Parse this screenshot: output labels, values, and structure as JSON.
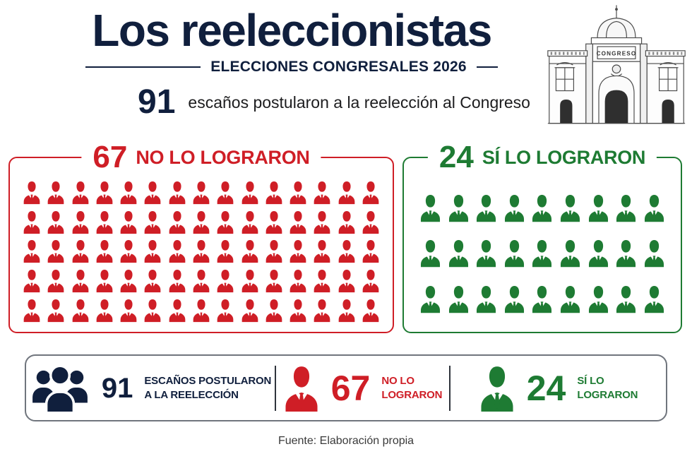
{
  "title": "Los reeleccionistas",
  "subtitle": "ELECCIONES CONGRESALES 2026",
  "lead": {
    "number": "91",
    "text": "escaños postularon a la reelección al Congreso"
  },
  "building": {
    "sign": "CONGRESO",
    "icon": "congress-building-illustration"
  },
  "colors": {
    "navy": "#101f3d",
    "red": "#cf1e26",
    "green": "#1e7b33"
  },
  "chart_data": {
    "type": "pictogram",
    "title": "Los reeleccionistas — Elecciones Congresales 2026",
    "total_label": "91 escaños postularon a la reelección al Congreso",
    "total": 91,
    "categories": [
      "No lo lograron",
      "Sí lo lograron"
    ],
    "values": [
      67,
      24
    ],
    "unit": "escaños",
    "icon": "person-icon",
    "legend_position": "bottom",
    "groups": [
      {
        "id": "no",
        "number": "67",
        "label": "NO LO LOGRARON",
        "color": "#cf1e26",
        "grid": {
          "rows": 5,
          "cols": 15
        }
      },
      {
        "id": "si",
        "number": "24",
        "label": "SÍ LO LOGRARON",
        "color": "#1e7b33",
        "grid": {
          "rows": 3,
          "cols": 9
        }
      }
    ]
  },
  "summary": {
    "items": [
      {
        "icon": "people-group-icon",
        "number": "91",
        "label_line1": "ESCAÑOS POSTULARON",
        "label_line2": "A LA REELECCIÓN",
        "color": "#101f3d"
      },
      {
        "icon": "person-icon",
        "number": "67",
        "label_line1": "NO LO",
        "label_line2": "LOGRARON",
        "color": "#cf1e26"
      },
      {
        "icon": "person-icon",
        "number": "24",
        "label_line1": "SÍ LO",
        "label_line2": "LOGRARON",
        "color": "#1e7b33"
      }
    ]
  },
  "footer": "Fuente: Elaboración propia"
}
